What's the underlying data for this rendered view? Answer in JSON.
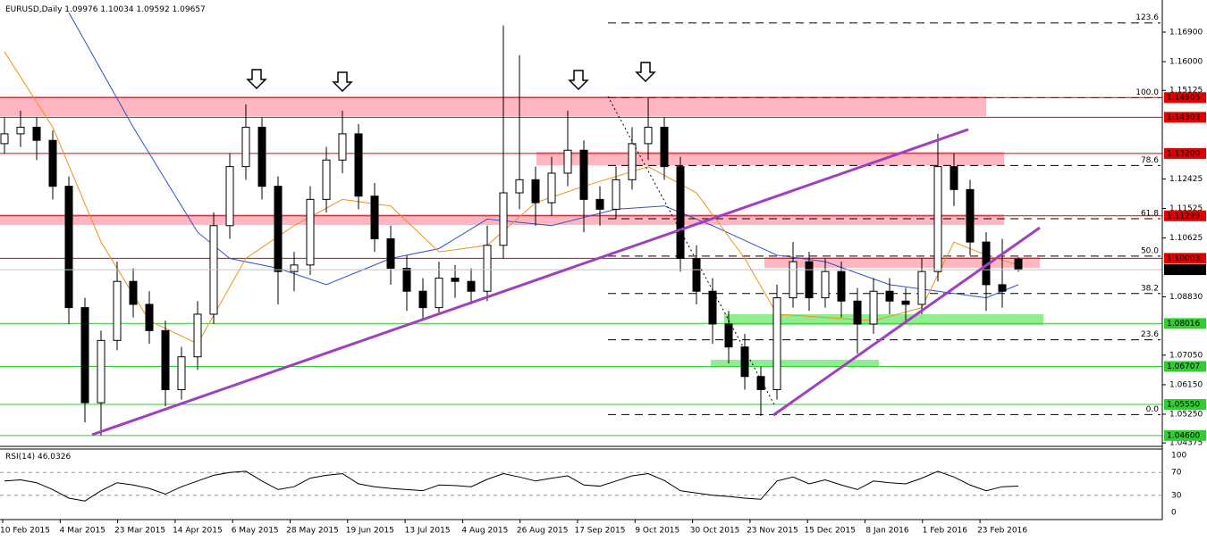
{
  "chart_data": {
    "type": "candlestick",
    "symbol": "EURUSD,Daily",
    "candles": [
      [
        1.135,
        1.143,
        1.132,
        1.138
      ],
      [
        1.138,
        1.145,
        1.134,
        1.14
      ],
      [
        1.14,
        1.143,
        1.13,
        1.136
      ],
      [
        1.136,
        1.139,
        1.118,
        1.122
      ],
      [
        1.122,
        1.125,
        1.08,
        1.085
      ],
      [
        1.085,
        1.088,
        1.05,
        1.056
      ],
      [
        1.056,
        1.078,
        1.046,
        1.075
      ],
      [
        1.075,
        1.099,
        1.072,
        1.093
      ],
      [
        1.093,
        1.097,
        1.082,
        1.086
      ],
      [
        1.086,
        1.09,
        1.074,
        1.078
      ],
      [
        1.078,
        1.081,
        1.055,
        1.06
      ],
      [
        1.06,
        1.073,
        1.057,
        1.07
      ],
      [
        1.07,
        1.087,
        1.066,
        1.083
      ],
      [
        1.083,
        1.114,
        1.08,
        1.11
      ],
      [
        1.11,
        1.132,
        1.106,
        1.128
      ],
      [
        1.128,
        1.147,
        1.124,
        1.14
      ],
      [
        1.14,
        1.143,
        1.118,
        1.122
      ],
      [
        1.122,
        1.125,
        1.086,
        1.096
      ],
      [
        1.096,
        1.102,
        1.09,
        1.098
      ],
      [
        1.098,
        1.122,
        1.095,
        1.118
      ],
      [
        1.118,
        1.134,
        1.114,
        1.13
      ],
      [
        1.13,
        1.145,
        1.126,
        1.138
      ],
      [
        1.138,
        1.141,
        1.115,
        1.119
      ],
      [
        1.119,
        1.123,
        1.102,
        1.106
      ],
      [
        1.106,
        1.11,
        1.092,
        1.097
      ],
      [
        1.097,
        1.101,
        1.084,
        1.09
      ],
      [
        1.09,
        1.094,
        1.081,
        1.085
      ],
      [
        1.085,
        1.099,
        1.083,
        1.094
      ],
      [
        1.094,
        1.098,
        1.088,
        1.093
      ],
      [
        1.093,
        1.097,
        1.086,
        1.09
      ],
      [
        1.09,
        1.11,
        1.087,
        1.104
      ],
      [
        1.104,
        1.171,
        1.1,
        1.12
      ],
      [
        1.12,
        1.162,
        1.115,
        1.124
      ],
      [
        1.124,
        1.128,
        1.11,
        1.117
      ],
      [
        1.117,
        1.131,
        1.113,
        1.126
      ],
      [
        1.126,
        1.145,
        1.122,
        1.133
      ],
      [
        1.133,
        1.136,
        1.108,
        1.118
      ],
      [
        1.118,
        1.122,
        1.11,
        1.115
      ],
      [
        1.115,
        1.128,
        1.112,
        1.124
      ],
      [
        1.124,
        1.14,
        1.121,
        1.135
      ],
      [
        1.135,
        1.149,
        1.13,
        1.14
      ],
      [
        1.14,
        1.143,
        1.124,
        1.128
      ],
      [
        1.128,
        1.131,
        1.096,
        1.1
      ],
      [
        1.1,
        1.104,
        1.086,
        1.09
      ],
      [
        1.09,
        1.094,
        1.074,
        1.08
      ],
      [
        1.08,
        1.084,
        1.068,
        1.073
      ],
      [
        1.073,
        1.077,
        1.06,
        1.064
      ],
      [
        1.064,
        1.067,
        1.052,
        1.06
      ],
      [
        1.06,
        1.092,
        1.057,
        1.088
      ],
      [
        1.088,
        1.105,
        1.085,
        1.099
      ],
      [
        1.099,
        1.102,
        1.084,
        1.088
      ],
      [
        1.088,
        1.1,
        1.085,
        1.096
      ],
      [
        1.096,
        1.099,
        1.082,
        1.087
      ],
      [
        1.087,
        1.091,
        1.071,
        1.08
      ],
      [
        1.08,
        1.094,
        1.077,
        1.09
      ],
      [
        1.09,
        1.094,
        1.083,
        1.087
      ],
      [
        1.087,
        1.091,
        1.08,
        1.086
      ],
      [
        1.086,
        1.1,
        1.083,
        1.096
      ],
      [
        1.096,
        1.138,
        1.093,
        1.128
      ],
      [
        1.128,
        1.132,
        1.116,
        1.121
      ],
      [
        1.121,
        1.124,
        1.101,
        1.105
      ],
      [
        1.105,
        1.108,
        1.084,
        1.092
      ],
      [
        1.092,
        1.106,
        1.085,
        1.09
      ],
      [
        1.09976,
        1.10034,
        1.09592,
        1.09657
      ]
    ],
    "moving_averages": [
      {
        "color": "#3050d0",
        "x": [
          4,
          8,
          12,
          14,
          17,
          20,
          24,
          27,
          30,
          34,
          38,
          41,
          44,
          48,
          51,
          55,
          58,
          61,
          63
        ],
        "values": [
          1.175,
          1.14,
          1.108,
          1.1,
          1.097,
          1.092,
          1.1,
          1.103,
          1.112,
          1.11,
          1.115,
          1.116,
          1.11,
          1.101,
          1.099,
          1.092,
          1.09,
          1.088,
          1.092
        ]
      },
      {
        "color": "#f0901a",
        "x": [
          0,
          3,
          6,
          9,
          12,
          15,
          18,
          21,
          24,
          27,
          30,
          33,
          36,
          40,
          43,
          46,
          48,
          51,
          54,
          57,
          59,
          61,
          63
        ],
        "values": [
          1.163,
          1.14,
          1.105,
          1.081,
          1.074,
          1.1,
          1.11,
          1.118,
          1.116,
          1.102,
          1.104,
          1.117,
          1.122,
          1.128,
          1.12,
          1.1,
          1.083,
          1.082,
          1.081,
          1.085,
          1.105,
          1.101,
          1.098
        ]
      }
    ],
    "x_labels": [
      "10 Feb 2015",
      "4 Mar 2015",
      "23 Mar 2015",
      "14 Apr 2015",
      "6 May 2015",
      "28 May 2015",
      "19 Jun 2015",
      "13 Jul 2015",
      "4 Aug 2015",
      "26 Aug 2015",
      "17 Sep 2015",
      "9 Oct 2015",
      "30 Oct 2015",
      "23 Nov 2015",
      "15 Dec 2015",
      "8 Jan 2016",
      "1 Feb 2016",
      "23 Feb 2016"
    ],
    "ylim": [
      1.0427,
      1.1788
    ],
    "yticks": [
      {
        "value": 1.169,
        "label": "1.16900"
      },
      {
        "value": 1.16,
        "label": "1.16000"
      },
      1.15125,
      1.12425,
      1.11525,
      1.10625,
      {
        "value": 1.0883,
        "label": "1.08830"
      },
      {
        "value": 1.0705,
        "label": "1.07050"
      },
      {
        "value": 1.0615,
        "label": "1.06150"
      },
      {
        "value": 1.0525,
        "label": "1.05250"
      },
      1.04375
    ],
    "zones": [
      {
        "from": 1.1434,
        "to": 1.1494,
        "color": "#ffb6c1"
      },
      {
        "from": 1.1284,
        "to": 1.1325,
        "color": "#ffb6c1"
      },
      {
        "from": 1.1102,
        "to": 1.1135,
        "color": "#ffb6c1"
      },
      {
        "from": 1.0971,
        "to": 1.1004,
        "color": "#ffb6c1"
      },
      {
        "from": 1.0797,
        "to": 1.083,
        "color": "#90ee90"
      },
      {
        "from": 1.0669,
        "to": 1.0691,
        "color": "#90ee90"
      }
    ],
    "levels": [
      {
        "price": 1.14905,
        "color": "#e00000"
      },
      {
        "price": 1.14303,
        "color": "#e00000"
      },
      {
        "price": {
          "value": 1.132,
          "label": "1.13200"
        },
        "color": "#e00000"
      },
      {
        "price": 1.11299,
        "color": "#e00000"
      },
      {
        "price": 1.10003,
        "color": "#e00000"
      },
      {
        "price": 1.08016,
        "color": "#32cd32"
      },
      {
        "price": 1.06707,
        "color": "#32cd32"
      },
      {
        "price": {
          "value": 1.0555,
          "label": "1.05550"
        },
        "color": "#32cd32"
      },
      {
        "price": {
          "value": 1.046,
          "label": "1.04600"
        },
        "color": "#32cd32"
      }
    ],
    "fib": {
      "low": 1.0524,
      "high": 1.149,
      "levels": [
        123.6,
        {
          "value": 100,
          "label": "100.0"
        },
        78.6,
        61.8,
        {
          "value": 50,
          "label": "50.0"
        },
        38.2,
        23.6,
        {
          "value": 0,
          "label": "0.0"
        }
      ]
    },
    "rsi": {
      "title": "RSI(14)",
      "ylim": [
        0,
        100
      ],
      "yticks": [
        100,
        70,
        30,
        0
      ],
      "values": [
        55,
        57,
        52,
        40,
        25,
        20,
        38,
        52,
        48,
        42,
        32,
        45,
        55,
        65,
        70,
        72,
        55,
        40,
        45,
        60,
        65,
        68,
        50,
        45,
        42,
        40,
        38,
        48,
        47,
        45,
        58,
        68,
        62,
        55,
        60,
        64,
        48,
        46,
        55,
        64,
        68,
        56,
        38,
        34,
        30,
        28,
        25,
        23,
        55,
        62,
        50,
        57,
        48,
        40,
        55,
        52,
        50,
        60,
        72,
        62,
        48,
        38,
        45,
        46.0326
      ]
    }
  }
}
